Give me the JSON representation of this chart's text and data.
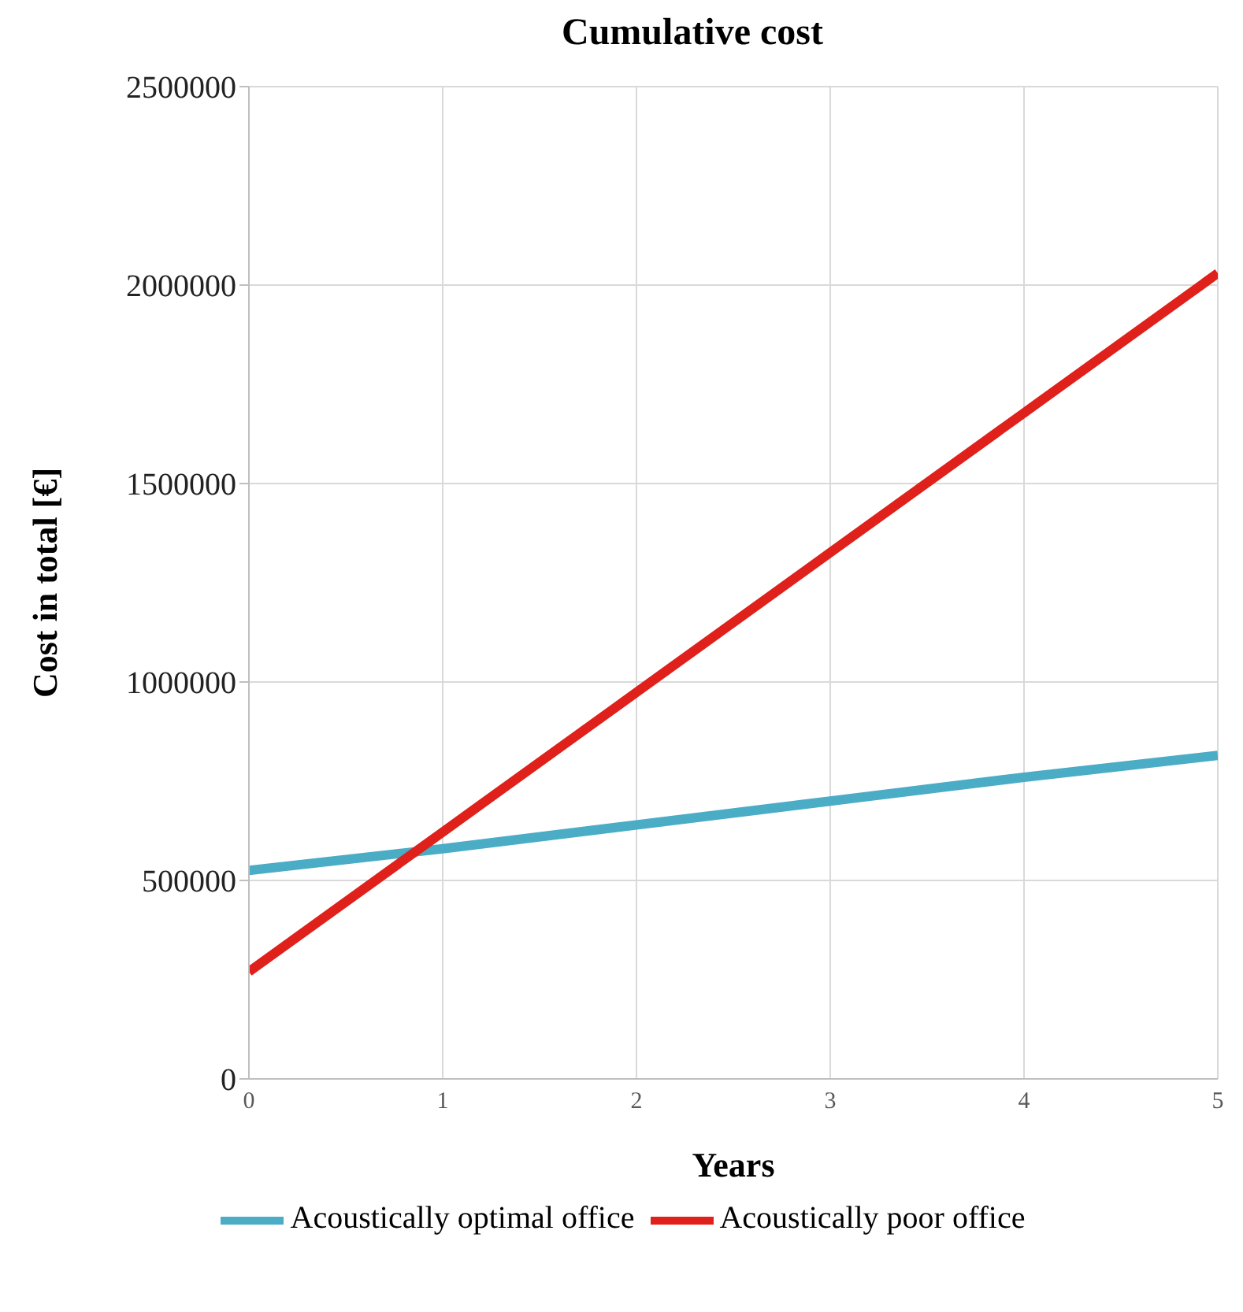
{
  "chart_data": {
    "type": "line",
    "title": "Cumulative cost",
    "xlabel": "Years",
    "ylabel": "Cost in total [€]",
    "x": [
      0,
      1,
      2,
      3,
      4,
      5
    ],
    "series": [
      {
        "name": "Acoustically optimal office",
        "color": "#4bacc6",
        "values": [
          525000,
          580000,
          640000,
          700000,
          760000,
          815000
        ]
      },
      {
        "name": "Acoustically poor office",
        "color": "#e0201b",
        "values": [
          270000,
          622000,
          974000,
          1326000,
          1678000,
          2030000
        ]
      }
    ],
    "xlim": [
      0,
      5
    ],
    "xticks": [
      0,
      1,
      2,
      3,
      4,
      5
    ],
    "ylim": [
      0,
      2500000
    ],
    "yticks": [
      0,
      500000,
      1000000,
      1500000,
      2000000,
      2500000
    ],
    "grid": true,
    "legend": "bottom",
    "marker": "none",
    "line_style": "solid"
  }
}
